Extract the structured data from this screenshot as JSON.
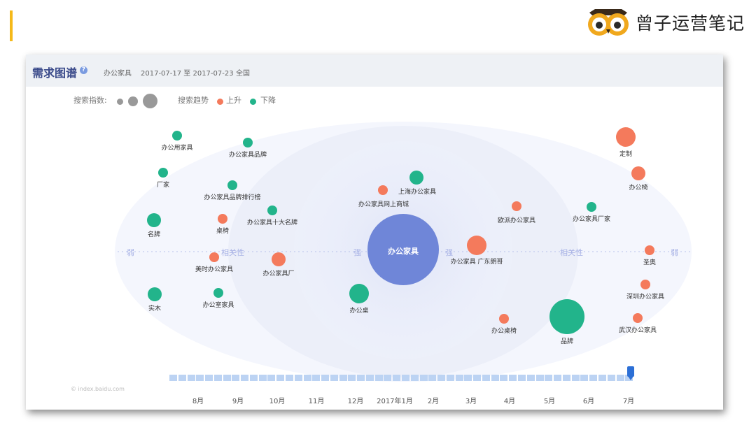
{
  "brand": {
    "name": "曾子运营笔记"
  },
  "card": {
    "title": "需求图谱",
    "keyword": "办公家具",
    "date_range": "2017-07-17 至 2017-07-23",
    "region": "全国"
  },
  "legend": {
    "search_index_label": "搜索指数:",
    "trend_label": "搜索趋势",
    "up_label": "上升",
    "down_label": "下降"
  },
  "colors": {
    "up": "#f47a5c",
    "down": "#22b48b",
    "center": "#6f86d8",
    "accent": "#f5b919"
  },
  "axis": {
    "weak": "弱",
    "relevance": "相关性",
    "strong": "强"
  },
  "center": {
    "label": "办公家具"
  },
  "nodes": [
    {
      "label": "办公用家具",
      "trend": "down",
      "size": "s"
    },
    {
      "label": "办公家具品牌",
      "trend": "down",
      "size": "s"
    },
    {
      "label": "厂家",
      "trend": "down",
      "size": "s"
    },
    {
      "label": "办公家具品牌排行榜",
      "trend": "down",
      "size": "s"
    },
    {
      "label": "办公家具十大名牌",
      "trend": "down",
      "size": "s"
    },
    {
      "label": "名牌",
      "trend": "down",
      "size": "m"
    },
    {
      "label": "桌椅",
      "trend": "up",
      "size": "s"
    },
    {
      "label": "美时办公家具",
      "trend": "up",
      "size": "s"
    },
    {
      "label": "办公家具厂",
      "trend": "up",
      "size": "m"
    },
    {
      "label": "实木",
      "trend": "down",
      "size": "m"
    },
    {
      "label": "办公室家具",
      "trend": "down",
      "size": "s"
    },
    {
      "label": "办公家具网上商城",
      "trend": "up",
      "size": "s"
    },
    {
      "label": "上海办公家具",
      "trend": "down",
      "size": "m"
    },
    {
      "label": "办公桌",
      "trend": "down",
      "size": "l"
    },
    {
      "label": "办公家具 广东朗哥",
      "trend": "up",
      "size": "l"
    },
    {
      "label": "欧派办公家具",
      "trend": "up",
      "size": "s"
    },
    {
      "label": "办公家具厂家",
      "trend": "down",
      "size": "s"
    },
    {
      "label": "定制",
      "trend": "up",
      "size": "l"
    },
    {
      "label": "办公椅",
      "trend": "up",
      "size": "m"
    },
    {
      "label": "圣奥",
      "trend": "up",
      "size": "s"
    },
    {
      "label": "深圳办公家具",
      "trend": "up",
      "size": "s"
    },
    {
      "label": "办公桌椅",
      "trend": "up",
      "size": "s"
    },
    {
      "label": "品牌",
      "trend": "down",
      "size": "xl"
    },
    {
      "label": "武汉办公家具",
      "trend": "up",
      "size": "s"
    }
  ],
  "timeline": {
    "months": [
      "8月",
      "9月",
      "10月",
      "11月",
      "12月",
      "2017年1月",
      "2月",
      "3月",
      "4月",
      "5月",
      "6月",
      "7月"
    ],
    "selected": "7月"
  },
  "watermark": "© index.baidu.com"
}
